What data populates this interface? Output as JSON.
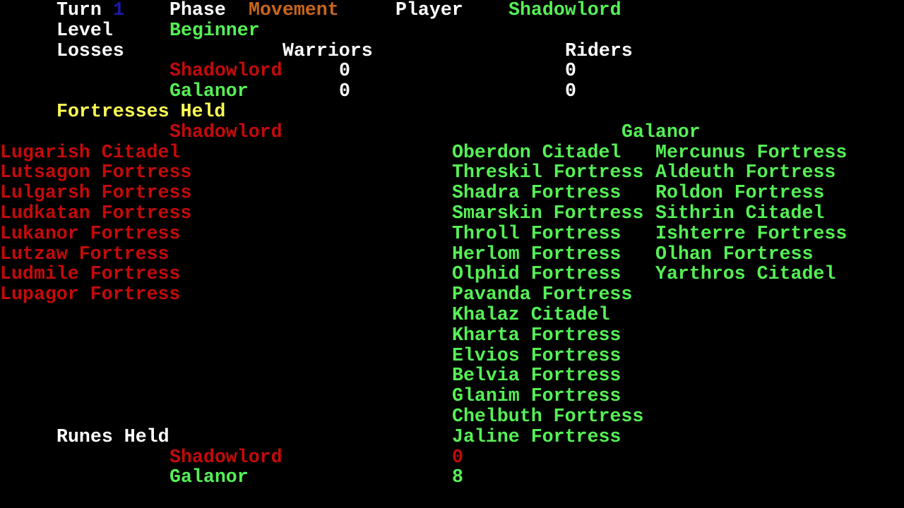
{
  "colors": {
    "white": "#ffffff",
    "blue": "#1a1aa8",
    "orange": "#c8661a",
    "green": "#55f055",
    "red": "#c40a0a",
    "yellow": "#ffff55"
  },
  "status": {
    "turn_label": "Turn",
    "turn": "1",
    "phase_label": "Phase",
    "phase": "Movement",
    "player_label": "Player",
    "player": "Shadowlord",
    "level_label": "Level",
    "level": "Beginner"
  },
  "losses": {
    "label": "Losses",
    "warriors_label": "Warriors",
    "riders_label": "Riders",
    "rows": [
      {
        "side": "Shadowlord",
        "warriors": "0",
        "riders": "0"
      },
      {
        "side": "Galanor",
        "warriors": "0",
        "riders": "0"
      }
    ]
  },
  "fortresses": {
    "label": "Fortresses Held",
    "shadowlord_label": "Shadowlord",
    "galanor_label": "Galanor",
    "shadowlord": [
      "Lugarish Citadel",
      "Lutsagon Fortress",
      "Lulgarsh Fortress",
      "Ludkatan Fortress",
      "Lukanor Fortress",
      "Lutzaw Fortress",
      "Ludmile Fortress",
      "Lupagor Fortress"
    ],
    "galanor_col1": [
      "Oberdon Citadel",
      "Threskil Fortress",
      "Shadra Fortress",
      "Smarskin Fortress",
      "Throll Fortress",
      "Herlom Fortress",
      "Olphid Fortress",
      "Pavanda Fortress",
      "Khalaz Citadel",
      "Kharta Fortress",
      "Elvios Fortress",
      "Belvia Fortress",
      "Glanim Fortress",
      "Chelbuth Fortress",
      "Jaline Fortress"
    ],
    "galanor_col2": [
      "Mercunus Fortress",
      "Aldeuth Fortress",
      "Roldon Fortress",
      "Sithrin Citadel",
      "Ishterre Fortress",
      "Olhan Fortress",
      "Yarthros Citadel"
    ]
  },
  "runes": {
    "label": "Runes Held",
    "rows": [
      {
        "side": "Shadowlord",
        "count": "0"
      },
      {
        "side": "Galanor",
        "count": "8"
      }
    ]
  }
}
